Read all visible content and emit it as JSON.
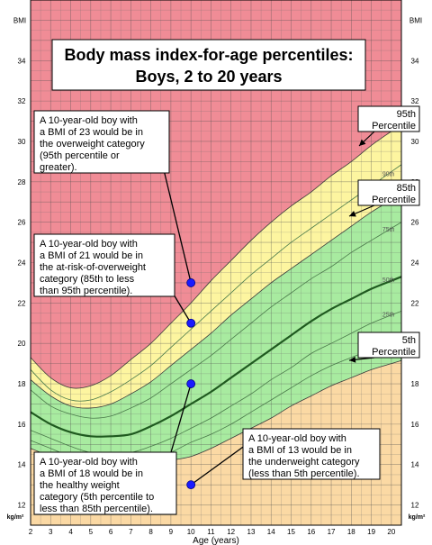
{
  "chart_data": {
    "type": "line",
    "title": "Body mass index-for-age percentiles:",
    "subtitle": "Boys, 2 to 20 years",
    "xlabel": "Age (years)",
    "ylabel_left_top": "BMI",
    "ylabel_right_top": "BMI",
    "unit_left_bottom": "kg/m²",
    "unit_right_bottom": "kg/m²",
    "xlim": [
      2,
      20.5
    ],
    "ylim": [
      11,
      37
    ],
    "x_ticks": [
      "2",
      "3",
      "4",
      "5",
      "6",
      "7",
      "8",
      "9",
      "10",
      "11",
      "12",
      "13",
      "14",
      "15",
      "16",
      "17",
      "18",
      "19",
      "20"
    ],
    "y_ticks": [
      "12",
      "14",
      "16",
      "18",
      "20",
      "22",
      "24",
      "26",
      "28",
      "30",
      "32",
      "34"
    ],
    "grid": true,
    "zones": [
      {
        "name": "overweight",
        "color": "#f08c96"
      },
      {
        "name": "at-risk",
        "color": "#fdf5a0"
      },
      {
        "name": "healthy",
        "color": "#a8eba0"
      },
      {
        "name": "underweight",
        "color": "#fbd9a4"
      }
    ],
    "x": [
      2,
      3,
      4,
      5,
      6,
      7,
      8,
      9,
      10,
      11,
      12,
      13,
      14,
      15,
      16,
      17,
      18,
      19,
      20
    ],
    "series": [
      {
        "name": "95th",
        "values": [
          19.3,
          18.3,
          17.8,
          17.9,
          18.4,
          19.2,
          20.0,
          21.0,
          22.0,
          23.1,
          24.1,
          25.1,
          26.0,
          26.8,
          27.5,
          28.3,
          29.0,
          29.8,
          30.5
        ]
      },
      {
        "name": "90th",
        "values": [
          18.7,
          17.7,
          17.2,
          17.2,
          17.6,
          18.2,
          18.9,
          19.8,
          20.7,
          21.6,
          22.5,
          23.4,
          24.2,
          25.0,
          25.7,
          26.4,
          27.1,
          27.8,
          28.5
        ]
      },
      {
        "name": "85th",
        "values": [
          18.2,
          17.4,
          16.9,
          16.8,
          17.0,
          17.5,
          18.1,
          18.9,
          19.7,
          20.5,
          21.4,
          22.2,
          23.0,
          23.7,
          24.4,
          25.1,
          25.8,
          26.5,
          27.1
        ]
      },
      {
        "name": "75th",
        "values": [
          17.7,
          16.9,
          16.5,
          16.3,
          16.4,
          16.8,
          17.3,
          18.0,
          18.7,
          19.4,
          20.2,
          21.0,
          21.8,
          22.5,
          23.2,
          23.8,
          24.5,
          25.1,
          25.7
        ]
      },
      {
        "name": "50th",
        "values": [
          16.6,
          16.0,
          15.6,
          15.4,
          15.4,
          15.5,
          15.9,
          16.4,
          17.0,
          17.6,
          18.3,
          19.0,
          19.7,
          20.4,
          21.1,
          21.7,
          22.2,
          22.7,
          23.1
        ]
      },
      {
        "name": "25th",
        "values": [
          15.7,
          15.3,
          14.9,
          14.6,
          14.6,
          14.6,
          14.9,
          15.3,
          15.8,
          16.3,
          16.9,
          17.5,
          18.2,
          18.8,
          19.5,
          20.0,
          20.5,
          21.0,
          21.4
        ]
      },
      {
        "name": "10th",
        "values": [
          15.2,
          14.8,
          14.4,
          14.1,
          14.0,
          14.0,
          14.2,
          14.6,
          15.1,
          15.5,
          16.0,
          16.6,
          17.2,
          17.8,
          18.4,
          18.9,
          19.3,
          19.7,
          20.1
        ]
      },
      {
        "name": "5th",
        "values": [
          14.8,
          14.4,
          14.0,
          13.8,
          13.7,
          13.7,
          13.9,
          14.2,
          14.4,
          14.8,
          15.3,
          15.8,
          16.3,
          16.9,
          17.4,
          17.9,
          18.3,
          18.7,
          19.0
        ]
      }
    ],
    "curve_labels": [
      "90th",
      "75th",
      "50th",
      "25th",
      "10th"
    ],
    "points": [
      {
        "x": 10,
        "y": 23,
        "color": "#1a1aff"
      },
      {
        "x": 10,
        "y": 21,
        "color": "#1a1aff"
      },
      {
        "x": 10,
        "y": 18,
        "color": "#1a1aff"
      },
      {
        "x": 10,
        "y": 13,
        "color": "#1a1aff"
      }
    ],
    "annotations": [
      {
        "lines": [
          "A 10-year-old boy with",
          "a BMI of 23 would be in",
          "the overweight category",
          "(95th percentile or",
          "greater)."
        ]
      },
      {
        "lines": [
          "A 10-year-old boy with",
          "a BMI of 21 would be in",
          "the at-risk-of-overweight",
          "category (85th to less",
          "than 95th percentile)."
        ]
      },
      {
        "lines": [
          "A 10-year-old boy with",
          "a BMI of 18 would be in",
          "the healthy weight",
          "category (5th percentile to",
          "less than 85th percentile)."
        ]
      },
      {
        "lines": [
          "A 10-year-old boy with",
          "a BMI of 13 would be in",
          "the underweight category",
          "(less than 5th percentile)."
        ]
      }
    ],
    "percentile_tags": [
      {
        "lines": [
          "95th",
          "Percentile"
        ]
      },
      {
        "lines": [
          "85th",
          "Percentile"
        ]
      },
      {
        "lines": [
          "5th",
          "Percentile"
        ]
      }
    ]
  }
}
